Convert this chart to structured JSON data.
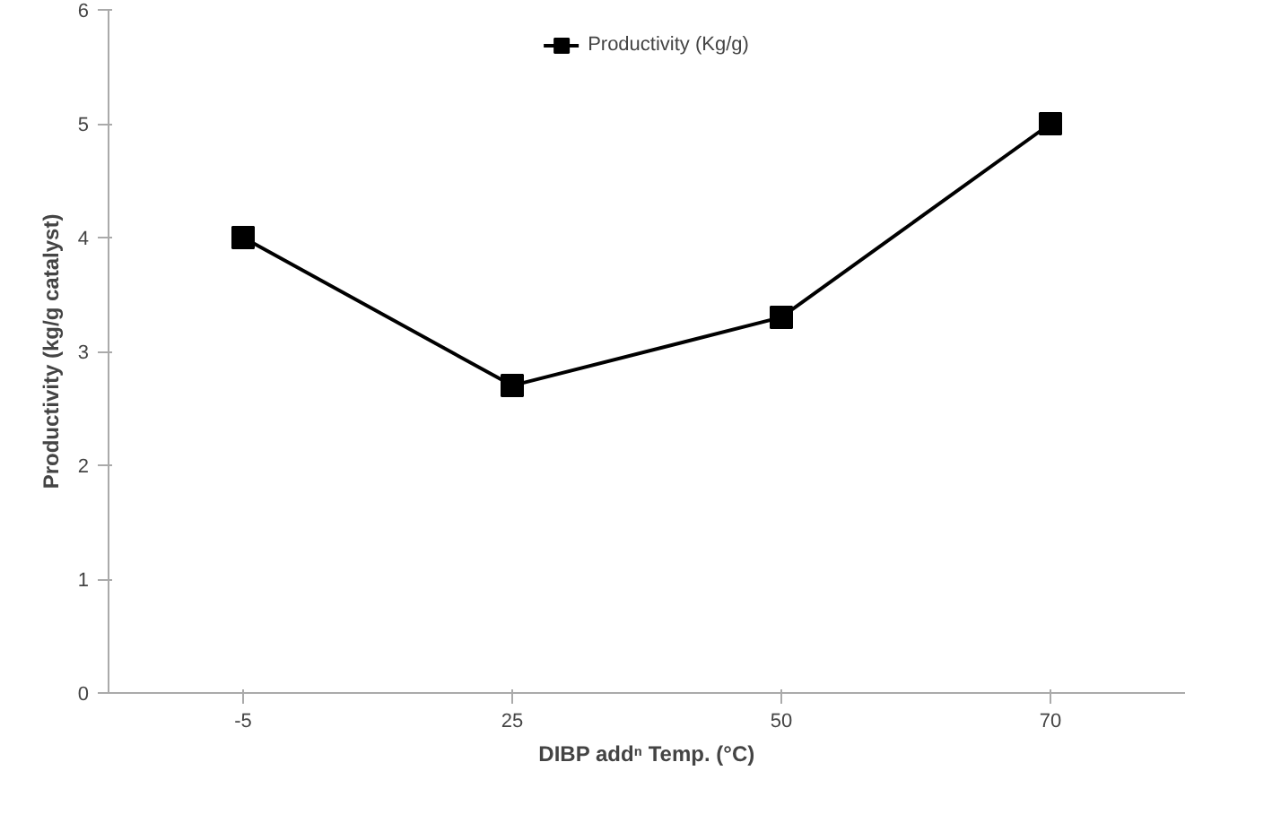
{
  "chart_data": {
    "type": "line",
    "xlabel": "DIBP addⁿ Temp. (°C)",
    "ylabel": "Productivity (kg/g catalyst)",
    "categories": [
      "-5",
      "25",
      "50",
      "70"
    ],
    "series": [
      {
        "name": "Productivity (Kg/g)",
        "color": "#000000",
        "values": [
          4.0,
          2.7,
          3.3,
          5.0
        ]
      }
    ],
    "ylim": [
      0,
      6
    ],
    "yticks": [
      0,
      1,
      2,
      3,
      4,
      5,
      6
    ],
    "grid": false,
    "legend": "top",
    "marker": "square",
    "line_style": "solid"
  }
}
